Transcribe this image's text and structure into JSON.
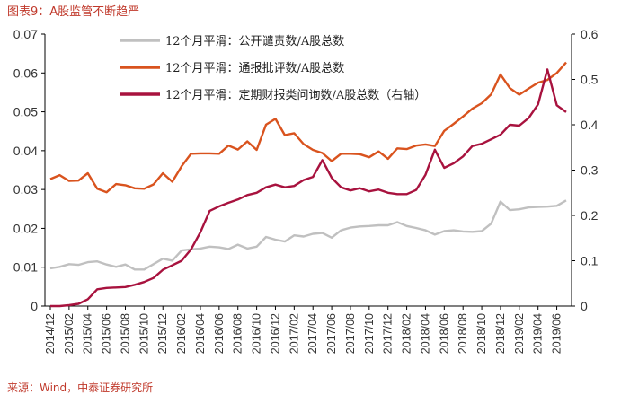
{
  "title": "图表9：A股监管不断趋严",
  "source": "来源：Wind，中泰证券研究所",
  "colors": {
    "gray": "#c0c0c0",
    "orange": "#d9531e",
    "crimson": "#a8123e",
    "axis": "#000000",
    "text": "#333333",
    "header": "#c0392b"
  },
  "chart_data": {
    "type": "line",
    "x": [
      "2014/12",
      "2015/01",
      "2015/02",
      "2015/03",
      "2015/04",
      "2015/05",
      "2015/06",
      "2015/07",
      "2015/08",
      "2015/09",
      "2015/10",
      "2015/11",
      "2015/12",
      "2016/01",
      "2016/02",
      "2016/03",
      "2016/04",
      "2016/05",
      "2016/06",
      "2016/07",
      "2016/08",
      "2016/09",
      "2016/10",
      "2016/11",
      "2016/12",
      "2017/01",
      "2017/02",
      "2017/03",
      "2017/04",
      "2017/05",
      "2017/06",
      "2017/07",
      "2017/08",
      "2017/09",
      "2017/10",
      "2017/11",
      "2017/12",
      "2018/01",
      "2018/02",
      "2018/03",
      "2018/04",
      "2018/05",
      "2018/06",
      "2018/07",
      "2018/08",
      "2018/09",
      "2018/10",
      "2018/11",
      "2018/12",
      "2019/01",
      "2019/02",
      "2019/03",
      "2019/04",
      "2019/05",
      "2019/06",
      "2019/07"
    ],
    "x_tick_labels": [
      "2014/12",
      "2015/02",
      "2015/04",
      "2015/06",
      "2015/08",
      "2015/10",
      "2015/12",
      "2016/02",
      "2016/04",
      "2016/06",
      "2016/08",
      "2016/10",
      "2016/12",
      "2017/02",
      "2017/04",
      "2017/06",
      "2017/08",
      "2017/10",
      "2017/12",
      "2018/02",
      "2018/04",
      "2018/06",
      "2018/08",
      "2018/10",
      "2018/12",
      "2019/02",
      "2019/04",
      "2019/06"
    ],
    "ylim": [
      0,
      0.07
    ],
    "y_ticks": [
      "0",
      "0.01",
      "0.02",
      "0.03",
      "0.04",
      "0.05",
      "0.06",
      "0.07"
    ],
    "y2lim": [
      0,
      0.6
    ],
    "y2_ticks": [
      "0",
      "0.1",
      "0.2",
      "0.3",
      "0.4",
      "0.5",
      "0.6"
    ],
    "legend_position": "top-center",
    "series": [
      {
        "name": "12个月平滑：公开谴责数/A股总数",
        "axis": "left",
        "color": "#c0c0c0",
        "values": [
          0.0097,
          0.0101,
          0.0108,
          0.0106,
          0.0113,
          0.0115,
          0.0107,
          0.0101,
          0.0107,
          0.0094,
          0.0094,
          0.0108,
          0.0122,
          0.0117,
          0.0143,
          0.0146,
          0.0148,
          0.0153,
          0.0151,
          0.0147,
          0.0158,
          0.0148,
          0.0153,
          0.0178,
          0.0171,
          0.0166,
          0.0182,
          0.0179,
          0.0186,
          0.0188,
          0.0176,
          0.0195,
          0.0202,
          0.0205,
          0.0206,
          0.0208,
          0.0208,
          0.0216,
          0.0206,
          0.0201,
          0.0195,
          0.0184,
          0.0193,
          0.0195,
          0.0192,
          0.0191,
          0.0193,
          0.0212,
          0.0269,
          0.0247,
          0.0249,
          0.0254,
          0.0255,
          0.0256,
          0.0258,
          0.0272
        ]
      },
      {
        "name": "12个月平滑：通报批评数/A股总数",
        "axis": "left",
        "color": "#d9531e",
        "values": [
          0.0327,
          0.0337,
          0.0322,
          0.0323,
          0.0342,
          0.0302,
          0.0293,
          0.0314,
          0.0311,
          0.0303,
          0.0302,
          0.0313,
          0.0342,
          0.032,
          0.036,
          0.0392,
          0.0393,
          0.0393,
          0.0392,
          0.0413,
          0.0403,
          0.0424,
          0.0402,
          0.0467,
          0.0482,
          0.044,
          0.0445,
          0.0417,
          0.0402,
          0.0394,
          0.0373,
          0.0392,
          0.0392,
          0.0391,
          0.0383,
          0.0398,
          0.0379,
          0.0406,
          0.0404,
          0.0413,
          0.0416,
          0.0412,
          0.0451,
          0.0469,
          0.0488,
          0.0508,
          0.0522,
          0.0545,
          0.0596,
          0.0561,
          0.0544,
          0.056,
          0.0575,
          0.0582,
          0.06,
          0.0627
        ]
      },
      {
        "name": "12个月平滑：定期财报类问询数/A股总数（右轴）",
        "axis": "right",
        "color": "#a8123e",
        "values": [
          0.0,
          0.0,
          0.002,
          0.005,
          0.015,
          0.037,
          0.04,
          0.041,
          0.042,
          0.047,
          0.053,
          0.062,
          0.08,
          0.09,
          0.1,
          0.125,
          0.163,
          0.21,
          0.22,
          0.228,
          0.235,
          0.245,
          0.25,
          0.262,
          0.268,
          0.262,
          0.265,
          0.278,
          0.285,
          0.322,
          0.283,
          0.262,
          0.255,
          0.26,
          0.253,
          0.257,
          0.25,
          0.247,
          0.247,
          0.256,
          0.29,
          0.345,
          0.305,
          0.315,
          0.33,
          0.353,
          0.358,
          0.368,
          0.378,
          0.4,
          0.398,
          0.415,
          0.445,
          0.522,
          0.443,
          0.428
        ]
      }
    ]
  }
}
